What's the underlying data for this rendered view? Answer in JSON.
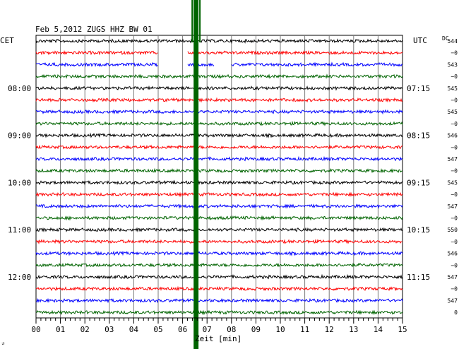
{
  "chart_data": {
    "type": "line",
    "title": "Feb 5,2012   ZUGS HHZ BW 01",
    "left_timezone": "CET",
    "right_timezone": "UTC",
    "dc_label": "DC",
    "xlabel": "Zeit [min]",
    "xlim": [
      0,
      15
    ],
    "x_ticks": [
      "00",
      "01",
      "02",
      "03",
      "04",
      "05",
      "06",
      "07",
      "08",
      "09",
      "10",
      "11",
      "12",
      "13",
      "14",
      "15"
    ],
    "grid": true,
    "trace_count": 24,
    "trace_colors": [
      "#000000",
      "#ff0000",
      "#0000ff",
      "#006400"
    ],
    "left_time_labels": [
      {
        "trace": 4,
        "label": "08:00"
      },
      {
        "trace": 8,
        "label": "09:00"
      },
      {
        "trace": 12,
        "label": "10:00"
      },
      {
        "trace": 16,
        "label": "11:00"
      },
      {
        "trace": 20,
        "label": "12:00"
      }
    ],
    "right_time_labels": [
      {
        "trace": 4,
        "label": "07:15"
      },
      {
        "trace": 8,
        "label": "08:15"
      },
      {
        "trace": 12,
        "label": "09:15"
      },
      {
        "trace": 16,
        "label": "10:15"
      },
      {
        "trace": 20,
        "label": "11:15"
      }
    ],
    "dc_values": [
      "544",
      "−0",
      "543",
      "−0",
      "545",
      "−0",
      "545",
      "−0",
      "546",
      "−0",
      "547",
      "−0",
      "545",
      "−0",
      "547",
      "−0",
      "550",
      "−0",
      "546",
      "−0",
      "547",
      "−0",
      "547",
      "0"
    ],
    "event": {
      "start_min": 6.45,
      "end_min": 6.65,
      "color": "#006400"
    },
    "gaps": [
      {
        "trace": 1,
        "start_min": 5.0,
        "end_min": 6.2
      },
      {
        "trace": 2,
        "start_min": 5.0,
        "end_min": 6.2
      },
      {
        "trace": 2,
        "start_min": 7.3,
        "end_min": 8.0
      }
    ],
    "corner_mark": "✰"
  }
}
